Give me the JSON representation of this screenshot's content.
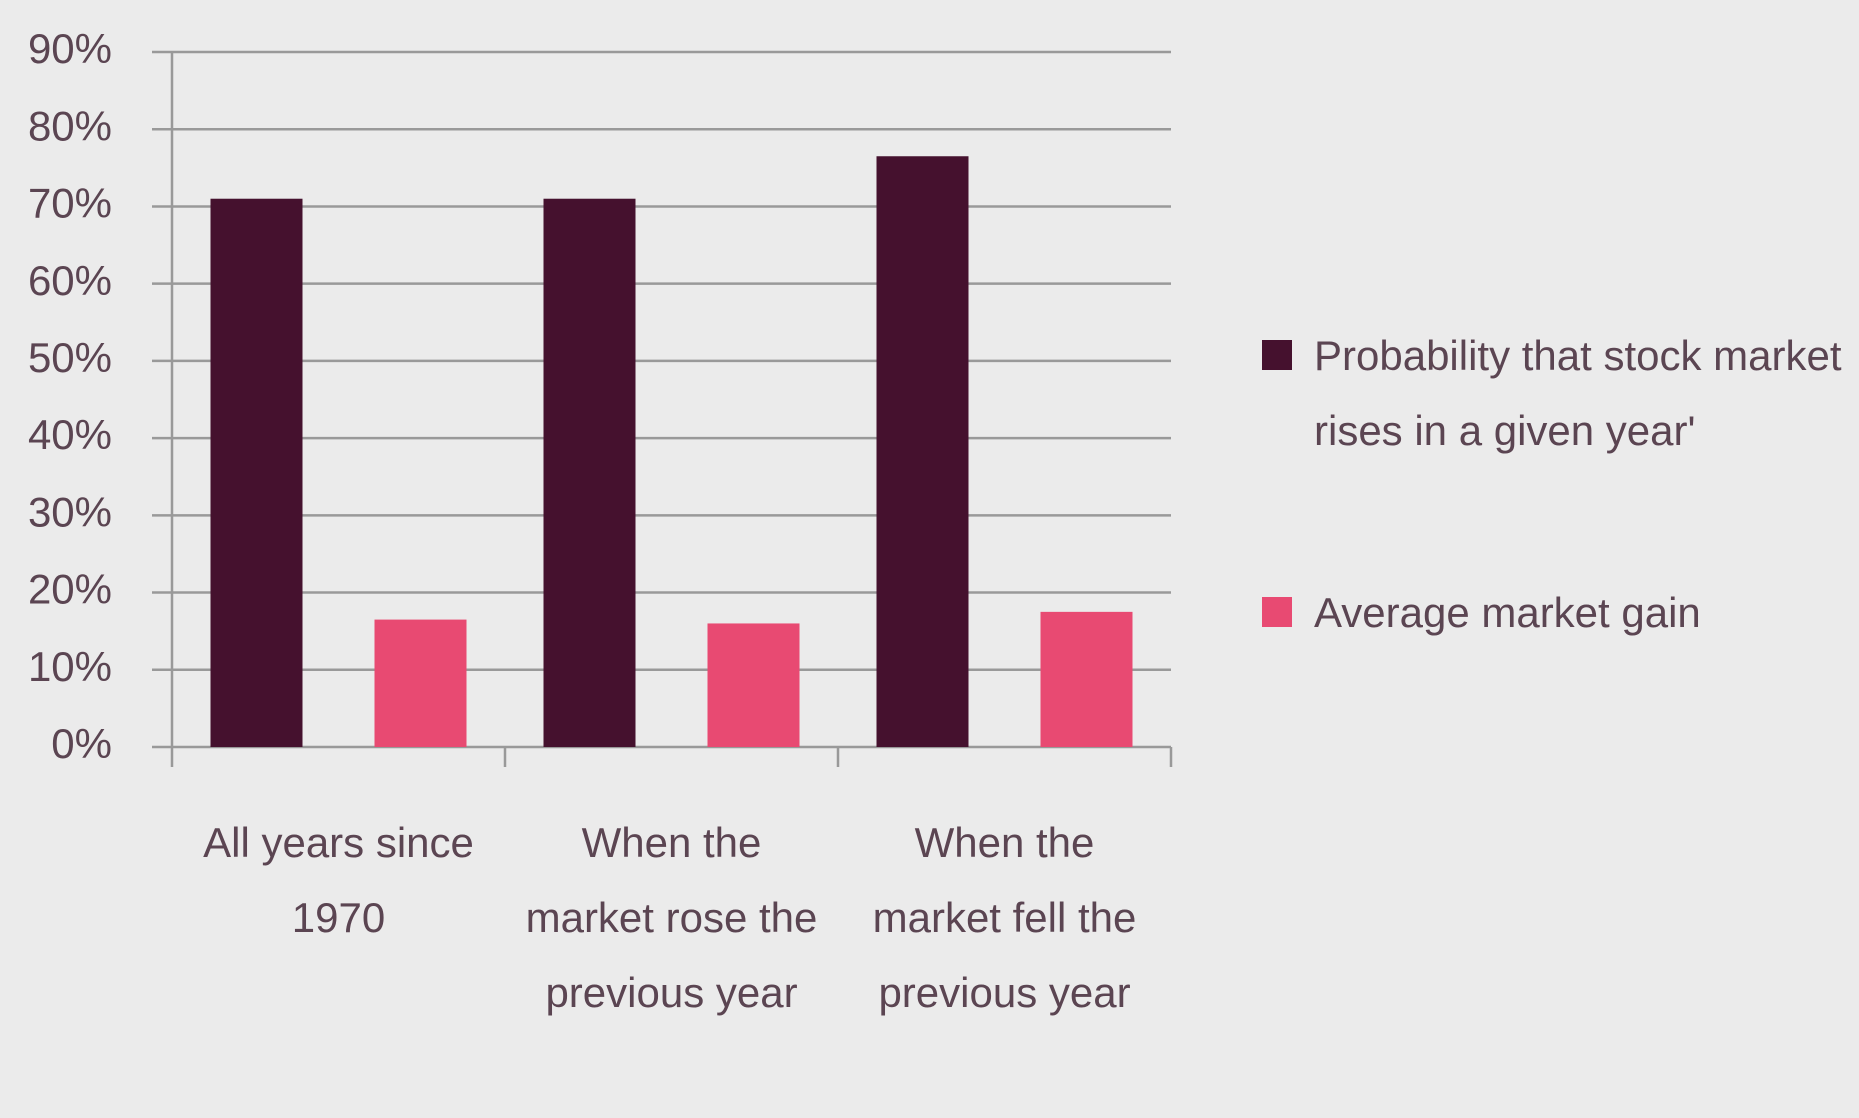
{
  "chart_data": {
    "type": "bar",
    "categories": [
      "All years since 1970",
      "When the market rose the previous year",
      "When the market fell the previous year"
    ],
    "series": [
      {
        "name": "Probability that stock market rises in a given year'",
        "color": "#45112e",
        "values": [
          71,
          71,
          76.5
        ]
      },
      {
        "name": "Average market gain",
        "color": "#e84a72",
        "values": [
          16.5,
          16,
          17.5
        ]
      }
    ],
    "ylim": [
      0,
      90
    ],
    "yticks": [
      {
        "value": 0,
        "label": "0%"
      },
      {
        "value": 10,
        "label": "10%"
      },
      {
        "value": 20,
        "label": "20%"
      },
      {
        "value": 30,
        "label": "30%"
      },
      {
        "value": 40,
        "label": "40%"
      },
      {
        "value": 50,
        "label": "50%"
      },
      {
        "value": 60,
        "label": "60%"
      },
      {
        "value": 70,
        "label": "70%"
      },
      {
        "value": 80,
        "label": "80%"
      },
      {
        "value": 90,
        "label": "90%"
      }
    ],
    "grid": true
  }
}
